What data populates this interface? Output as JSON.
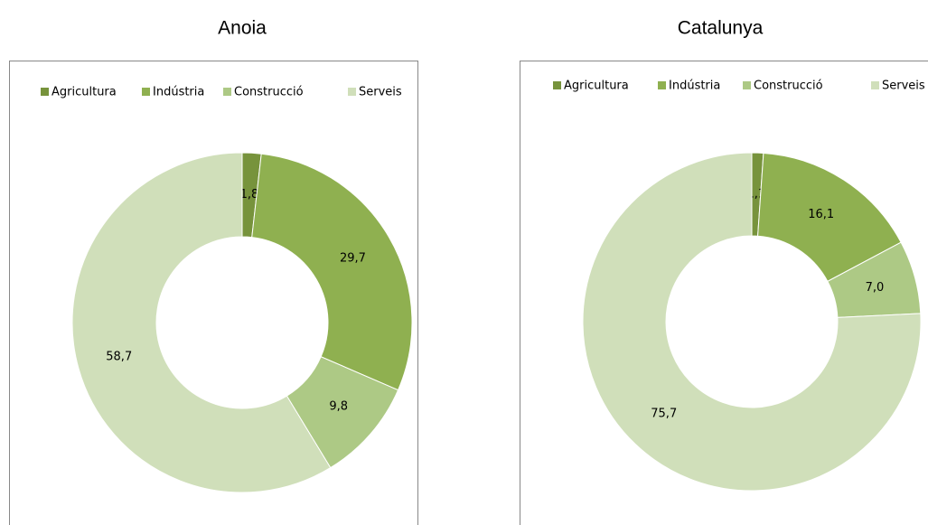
{
  "chart_data": [
    {
      "type": "donut",
      "title": "Anoia",
      "categories": [
        "Agricultura",
        "Indústria",
        "Construcció",
        "Serveis"
      ],
      "values": [
        1.8,
        29.7,
        9.8,
        58.7
      ],
      "value_labels": [
        "1,8",
        "29,7",
        "9,8",
        "58,7"
      ],
      "colors": [
        "#77933c",
        "#8fb050",
        "#adc985",
        "#d0dfba"
      ]
    },
    {
      "type": "donut",
      "title": "Catalunya",
      "categories": [
        "Agricultura",
        "Indústria",
        "Construcció",
        "Serveis"
      ],
      "values": [
        1.1,
        16.1,
        7.0,
        75.7
      ],
      "value_labels": [
        "1,1",
        "16,1",
        "7,0",
        "75,7"
      ],
      "colors": [
        "#77933c",
        "#8fb050",
        "#adc985",
        "#d0dfba"
      ]
    }
  ]
}
